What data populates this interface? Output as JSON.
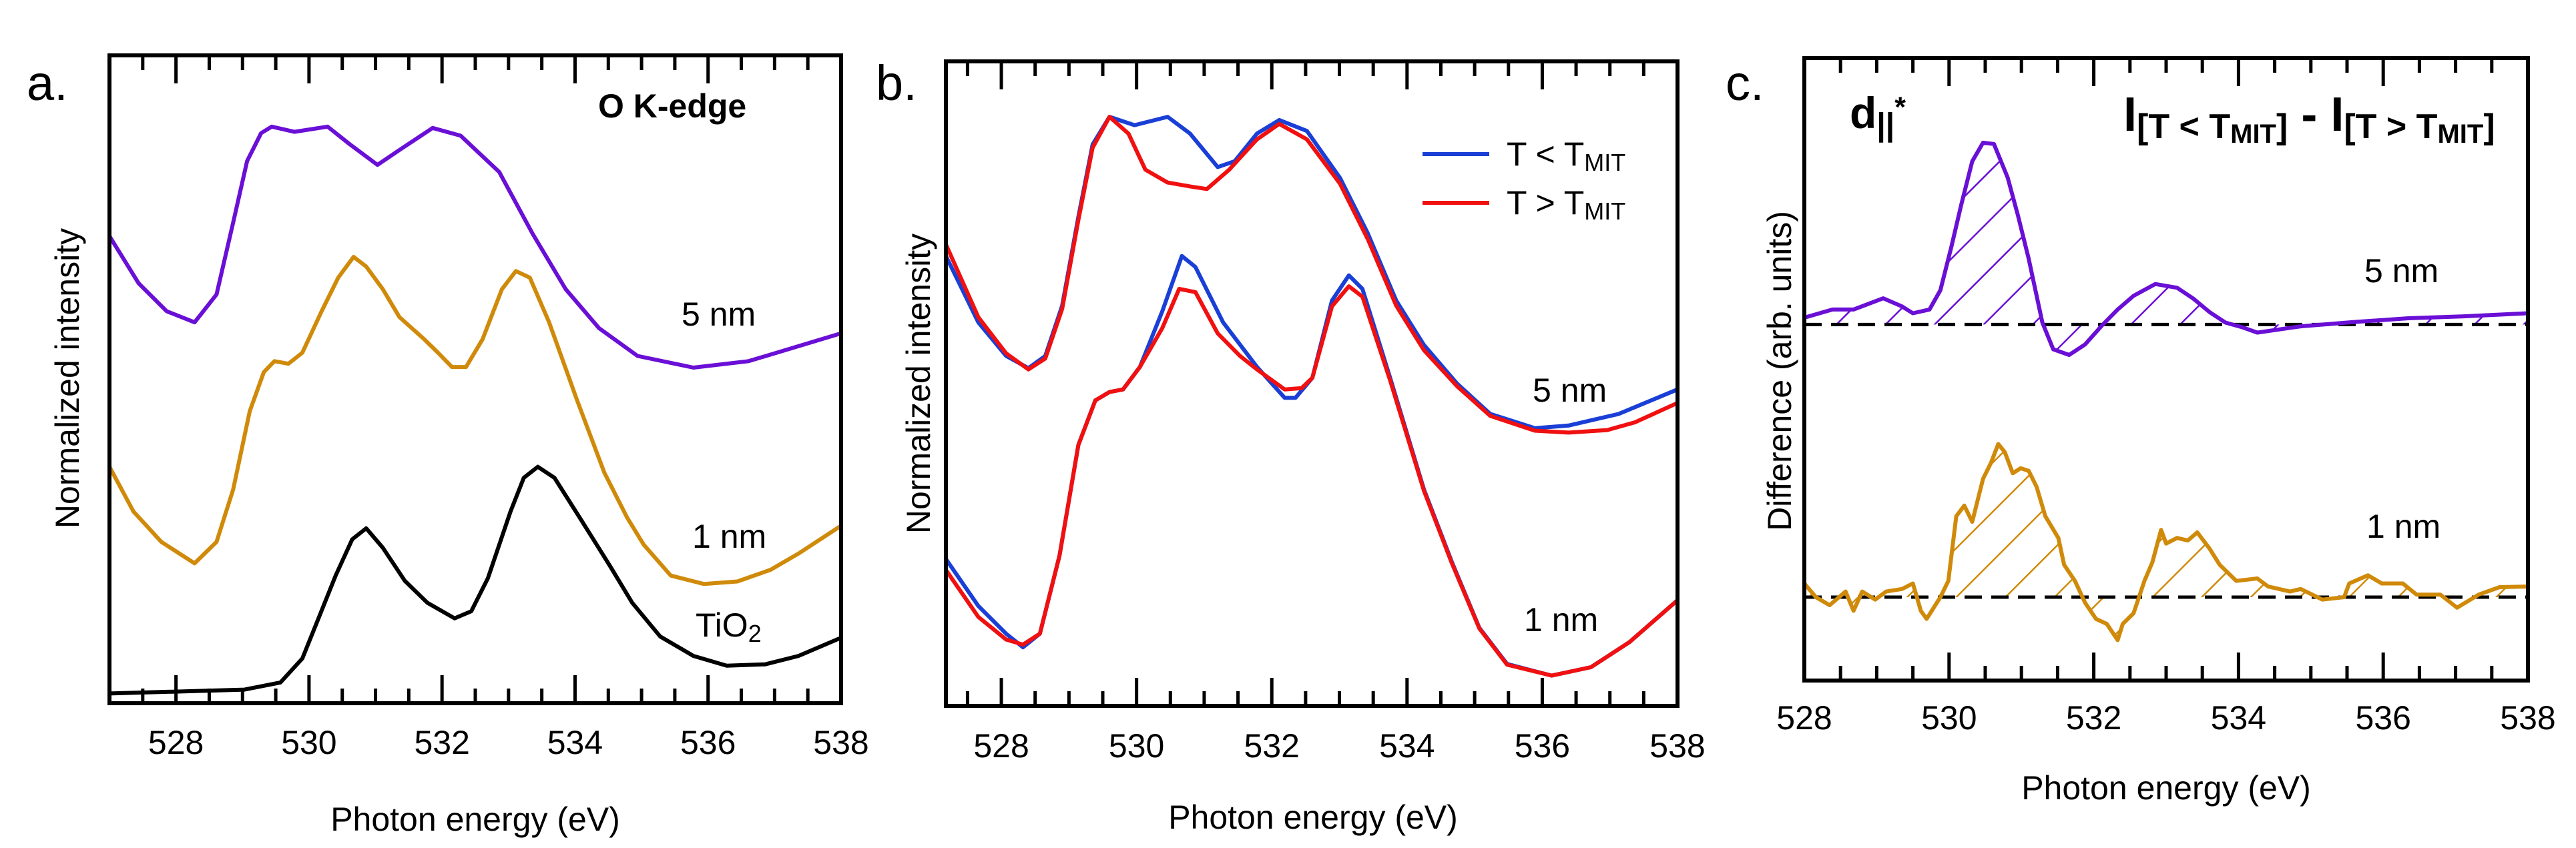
{
  "chart_data": [
    {
      "panel": "a.",
      "type": "line",
      "xlabel": "Photon energy (eV)",
      "ylabel": "Normalized intensity",
      "xlim": [
        527,
        538
      ],
      "ylim": [
        0,
        1
      ],
      "xticks": [
        528,
        530,
        532,
        534,
        536,
        538
      ],
      "xtick_labels": [
        "528",
        "530",
        "532",
        "534",
        "536",
        "538"
      ],
      "grid": false,
      "annotations": [
        {
          "segments": [
            {
              "text": "O K-edge"
            }
          ],
          "bold": true
        },
        {
          "segments": [
            {
              "text": "5 nm"
            }
          ]
        },
        {
          "segments": [
            {
              "text": "1 nm"
            }
          ]
        },
        {
          "segments": [
            {
              "text": "TiO"
            },
            {
              "text": "2",
              "style": "sub"
            }
          ]
        }
      ],
      "series": [
        {
          "name": "5 nm",
          "color": "#6a0fd6",
          "x": [
            527.0,
            527.44,
            527.86,
            528.28,
            528.61,
            528.86,
            529.07,
            529.28,
            529.44,
            529.78,
            530.28,
            530.61,
            531.03,
            531.36,
            531.86,
            532.28,
            532.86,
            533.36,
            533.86,
            534.36,
            534.94,
            535.78,
            536.61,
            538.0
          ],
          "y": [
            0.721,
            0.648,
            0.605,
            0.588,
            0.631,
            0.742,
            0.837,
            0.88,
            0.89,
            0.882,
            0.89,
            0.863,
            0.831,
            0.854,
            0.888,
            0.876,
            0.82,
            0.725,
            0.639,
            0.579,
            0.536,
            0.518,
            0.528,
            0.571
          ]
        },
        {
          "name": "1 nm",
          "color": "#d08a0a",
          "x": [
            527.0,
            527.36,
            527.78,
            528.28,
            528.61,
            528.86,
            529.11,
            529.32,
            529.48,
            529.69,
            529.9,
            530.19,
            530.44,
            530.67,
            530.86,
            531.11,
            531.36,
            531.73,
            531.94,
            532.15,
            532.36,
            532.61,
            532.9,
            533.11,
            533.32,
            533.61,
            534.03,
            534.44,
            534.78,
            535.03,
            535.44,
            535.94,
            536.44,
            536.94,
            537.36,
            538.0
          ],
          "y": [
            0.365,
            0.296,
            0.249,
            0.216,
            0.249,
            0.33,
            0.451,
            0.511,
            0.528,
            0.524,
            0.541,
            0.605,
            0.657,
            0.689,
            0.674,
            0.639,
            0.596,
            0.562,
            0.541,
            0.519,
            0.519,
            0.562,
            0.639,
            0.667,
            0.657,
            0.588,
            0.468,
            0.356,
            0.287,
            0.245,
            0.197,
            0.184,
            0.188,
            0.206,
            0.231,
            0.274
          ]
        },
        {
          "name": "TiO2",
          "color": "#000000",
          "x": [
            527.0,
            529.03,
            529.57,
            529.9,
            530.15,
            530.4,
            530.65,
            530.86,
            531.11,
            531.44,
            531.78,
            532.19,
            532.44,
            532.69,
            533.03,
            533.23,
            533.44,
            533.69,
            534.11,
            534.53,
            534.86,
            535.28,
            535.78,
            536.28,
            536.86,
            537.36,
            538.0
          ],
          "y": [
            0.015,
            0.021,
            0.032,
            0.069,
            0.133,
            0.197,
            0.253,
            0.27,
            0.24,
            0.189,
            0.155,
            0.131,
            0.142,
            0.193,
            0.296,
            0.348,
            0.365,
            0.348,
            0.28,
            0.211,
            0.155,
            0.103,
            0.073,
            0.058,
            0.06,
            0.073,
            0.101
          ]
        }
      ]
    },
    {
      "panel": "b.",
      "type": "line",
      "xlabel": "Photon energy (eV)",
      "ylabel": "Normalized intensity",
      "xlim": [
        527.18,
        538
      ],
      "ylim": [
        0,
        1
      ],
      "xticks": [
        528,
        530,
        532,
        534,
        536,
        538
      ],
      "xtick_labels": [
        "528",
        "530",
        "532",
        "534",
        "536",
        "538"
      ],
      "grid": false,
      "legend": {
        "placement": "top-right",
        "entries": [
          {
            "color": "#1a3fd6",
            "segments": [
              {
                "text": "T < T"
              },
              {
                "text": "MIT",
                "style": "sub"
              }
            ]
          },
          {
            "color": "#f01010",
            "segments": [
              {
                "text": "T > T"
              },
              {
                "text": "MIT",
                "style": "sub"
              }
            ]
          }
        ]
      },
      "annotations": [
        {
          "segments": [
            {
              "text": "5 nm"
            }
          ]
        },
        {
          "segments": [
            {
              "text": "1 nm"
            }
          ]
        }
      ],
      "series": [
        {
          "name": "5 nm, T < TMIT",
          "color": "#1a3fd6",
          "x": [
            527.18,
            527.66,
            528.07,
            528.4,
            528.65,
            528.9,
            529.14,
            529.35,
            529.6,
            529.97,
            530.46,
            530.79,
            531.2,
            531.45,
            531.78,
            532.11,
            532.52,
            533.01,
            533.42,
            533.84,
            534.25,
            534.74,
            535.23,
            535.89,
            536.39,
            537.13,
            538.0
          ],
          "y": [
            0.698,
            0.595,
            0.543,
            0.524,
            0.543,
            0.621,
            0.759,
            0.871,
            0.914,
            0.901,
            0.914,
            0.888,
            0.836,
            0.845,
            0.888,
            0.909,
            0.892,
            0.819,
            0.733,
            0.629,
            0.56,
            0.5,
            0.453,
            0.431,
            0.435,
            0.453,
            0.491
          ]
        },
        {
          "name": "5 nm, T > TMIT",
          "color": "#f01010",
          "x": [
            527.18,
            527.66,
            528.07,
            528.4,
            528.65,
            528.9,
            529.14,
            529.35,
            529.6,
            529.88,
            530.13,
            530.46,
            530.79,
            531.04,
            531.37,
            531.78,
            532.11,
            532.52,
            533.01,
            533.42,
            533.84,
            534.25,
            534.74,
            535.23,
            535.89,
            536.39,
            536.96,
            537.37,
            538.0
          ],
          "y": [
            0.716,
            0.603,
            0.547,
            0.522,
            0.539,
            0.616,
            0.754,
            0.866,
            0.914,
            0.888,
            0.832,
            0.812,
            0.806,
            0.802,
            0.832,
            0.879,
            0.903,
            0.879,
            0.81,
            0.724,
            0.621,
            0.552,
            0.496,
            0.45,
            0.427,
            0.424,
            0.428,
            0.44,
            0.47
          ]
        },
        {
          "name": "1 nm, T < TMIT",
          "color": "#1a3fd6",
          "x": [
            527.18,
            527.66,
            528.07,
            528.32,
            528.57,
            528.86,
            529.14,
            529.39,
            529.6,
            529.8,
            530.05,
            530.38,
            530.67,
            530.87,
            531.28,
            531.78,
            532.19,
            532.35,
            532.6,
            532.89,
            533.14,
            533.34,
            533.75,
            534.25,
            534.66,
            535.07,
            535.48,
            536.14,
            536.72,
            537.29,
            538.0
          ],
          "y": [
            0.228,
            0.155,
            0.112,
            0.091,
            0.112,
            0.233,
            0.405,
            0.474,
            0.487,
            0.491,
            0.526,
            0.612,
            0.698,
            0.681,
            0.595,
            0.526,
            0.478,
            0.478,
            0.509,
            0.629,
            0.668,
            0.647,
            0.509,
            0.336,
            0.224,
            0.121,
            0.065,
            0.047,
            0.06,
            0.099,
            0.164
          ]
        },
        {
          "name": "1 nm, T > TMIT",
          "color": "#f01010",
          "x": [
            527.18,
            527.66,
            528.07,
            528.32,
            528.57,
            528.86,
            529.14,
            529.39,
            529.6,
            529.8,
            530.05,
            530.38,
            530.63,
            530.87,
            531.2,
            531.53,
            531.78,
            532.19,
            532.44,
            532.6,
            532.89,
            533.14,
            533.34,
            533.75,
            534.25,
            534.66,
            535.07,
            535.48,
            536.14,
            536.72,
            537.29,
            538.0
          ],
          "y": [
            0.211,
            0.138,
            0.103,
            0.095,
            0.112,
            0.233,
            0.405,
            0.474,
            0.487,
            0.491,
            0.526,
            0.586,
            0.647,
            0.642,
            0.578,
            0.543,
            0.522,
            0.491,
            0.493,
            0.509,
            0.62,
            0.651,
            0.635,
            0.505,
            0.334,
            0.222,
            0.12,
            0.064,
            0.047,
            0.06,
            0.099,
            0.164
          ]
        }
      ]
    },
    {
      "panel": "c.",
      "type": "line",
      "xlabel": "Photon energy (eV)",
      "ylabel": "Difference (arb. units)",
      "xlim": [
        528,
        538
      ],
      "ylim": [
        0,
        1
      ],
      "xticks": [
        528,
        530,
        532,
        534,
        536,
        538
      ],
      "xtick_labels": [
        "528",
        "530",
        "532",
        "534",
        "536",
        "538"
      ],
      "grid": false,
      "title": {
        "segments": [
          {
            "text": "I"
          },
          {
            "text": "[T < T",
            "style": "sub"
          },
          {
            "text": "MIT",
            "style": "subsub"
          },
          {
            "text": "]",
            "style": "sub"
          },
          {
            "text": " - I"
          },
          {
            "text": "[T > T",
            "style": "sub"
          },
          {
            "text": "MIT",
            "style": "subsub"
          },
          {
            "text": "]",
            "style": "sub"
          }
        ]
      },
      "annotations": [
        {
          "segments": [
            {
              "text": "d"
            },
            {
              "text": "||",
              "style": "sub"
            },
            {
              "text": "*",
              "style": "sup"
            }
          ],
          "bold": true
        },
        {
          "segments": [
            {
              "text": "5 nm"
            }
          ]
        },
        {
          "segments": [
            {
              "text": "1 nm"
            }
          ]
        }
      ],
      "series": [
        {
          "name": "5 nm",
          "color": "#6a0fd6",
          "baseline": 0.572,
          "hatched": true,
          "x": [
            528.0,
            528.39,
            528.68,
            529.09,
            529.35,
            529.5,
            529.73,
            529.88,
            530.03,
            530.17,
            530.32,
            530.47,
            530.62,
            530.81,
            530.95,
            531.1,
            531.29,
            531.44,
            531.66,
            531.88,
            532.11,
            532.33,
            532.55,
            532.85,
            533.15,
            533.37,
            533.6,
            533.82,
            534.04,
            534.26,
            534.86,
            535.6,
            536.35,
            537.09,
            538.0
          ],
          "y": [
            0.583,
            0.596,
            0.596,
            0.614,
            0.601,
            0.59,
            0.596,
            0.627,
            0.696,
            0.765,
            0.834,
            0.864,
            0.862,
            0.808,
            0.748,
            0.678,
            0.575,
            0.532,
            0.523,
            0.54,
            0.57,
            0.596,
            0.618,
            0.637,
            0.631,
            0.614,
            0.592,
            0.575,
            0.568,
            0.559,
            0.569,
            0.576,
            0.582,
            0.585,
            0.59
          ]
        },
        {
          "name": "1 nm",
          "color": "#d08a0a",
          "baseline": 0.134,
          "hatched": true,
          "x": [
            528.0,
            528.16,
            528.35,
            528.57,
            528.68,
            528.8,
            528.98,
            529.13,
            529.35,
            529.5,
            529.61,
            529.69,
            529.88,
            529.99,
            530.1,
            530.21,
            530.32,
            530.47,
            530.58,
            530.68,
            530.77,
            530.88,
            530.99,
            531.1,
            531.21,
            531.33,
            531.51,
            531.59,
            531.74,
            531.88,
            532.03,
            532.18,
            532.33,
            532.4,
            532.55,
            532.7,
            532.81,
            532.93,
            533.0,
            533.15,
            533.3,
            533.43,
            533.6,
            533.74,
            533.97,
            534.26,
            534.41,
            534.71,
            534.86,
            535.16,
            535.46,
            535.53,
            535.79,
            535.98,
            536.27,
            536.46,
            536.79,
            537.02,
            537.32,
            537.61,
            538.0
          ],
          "y": [
            0.156,
            0.134,
            0.121,
            0.143,
            0.112,
            0.143,
            0.13,
            0.143,
            0.147,
            0.156,
            0.112,
            0.099,
            0.134,
            0.16,
            0.264,
            0.281,
            0.255,
            0.324,
            0.35,
            0.38,
            0.367,
            0.333,
            0.341,
            0.337,
            0.311,
            0.264,
            0.229,
            0.186,
            0.16,
            0.125,
            0.099,
            0.091,
            0.065,
            0.091,
            0.108,
            0.16,
            0.19,
            0.242,
            0.22,
            0.229,
            0.225,
            0.238,
            0.212,
            0.186,
            0.16,
            0.164,
            0.151,
            0.143,
            0.147,
            0.13,
            0.134,
            0.156,
            0.169,
            0.156,
            0.156,
            0.138,
            0.138,
            0.117,
            0.138,
            0.15,
            0.151
          ]
        }
      ]
    }
  ]
}
